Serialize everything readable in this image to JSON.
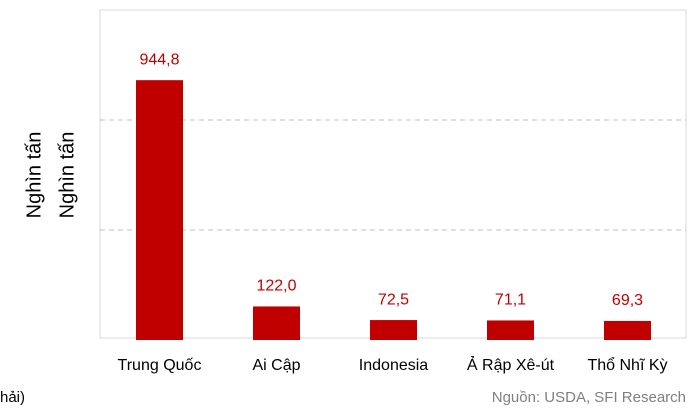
{
  "chart_data": {
    "type": "bar",
    "y_axis_labels": [
      "Nghìn tấn",
      "Nghìn tấn"
    ],
    "categories": [
      "Trung Quốc",
      "Ai Cập",
      "Indonesia",
      "Ả Rập Xê-út",
      "Thổ Nhĩ Kỳ"
    ],
    "values": [
      944.8,
      122.0,
      72.5,
      71.1,
      69.3
    ],
    "value_labels": [
      "944,8",
      "122,0",
      "72,5",
      "71,1",
      "69,3"
    ],
    "color": "#c00000",
    "ylim": [
      0,
      1200
    ],
    "yticks": [
      400,
      800
    ],
    "grid": true,
    "note": "hải)",
    "source": "Nguồn: USDA, SFI Research"
  }
}
